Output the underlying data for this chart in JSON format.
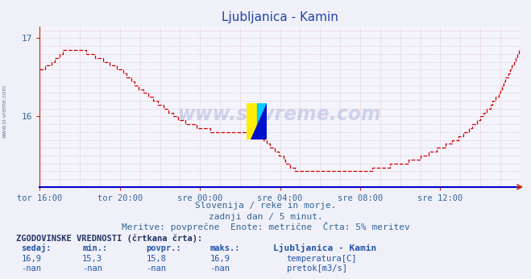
{
  "title": "Ljubljanica - Kamin",
  "title_color": "#2244aa",
  "bg_color": "#f0f0f8",
  "plot_bg_color": "#f4f4fc",
  "line_color": "#cc0000",
  "grid_color": "#ddaaaa",
  "axis_color": "#cc2200",
  "xaxis_line_color": "#0000cc",
  "ymin": 15.1,
  "ymax": 17.15,
  "yticks": [
    16,
    17
  ],
  "xlabels": [
    "tor 16:00",
    "tor 20:00",
    "sre 00:00",
    "sre 04:00",
    "sre 08:00",
    "sre 12:00"
  ],
  "footer1": "Slovenija / reke in morje.",
  "footer2": "zadnji dan / 5 minut.",
  "footer3": "Meritve: povprečne  Enote: metrične  Črta: 5% meritev",
  "hist_label": "ZGODOVINSKE VREDNOSTI (črtkana črta):",
  "col_sedaj": "sedaj:",
  "col_min": "min.:",
  "col_povpr": "povpr.:",
  "col_maks": "maks.:",
  "station": "Ljubljanica - Kamin",
  "val_sedaj": "16,9",
  "val_min": "15,3",
  "val_povpr": "15,8",
  "val_maks": "16,9",
  "label_temp": "temperatura[C]",
  "label_pretok": "pretok[m3/s]",
  "val2_sedaj": "-nan",
  "val2_min": "-nan",
  "val2_povpr": "-nan",
  "val2_maks": "-nan",
  "watermark": "www.si-vreme.com",
  "watermark_color": "#2244aa",
  "text_color": "#336699",
  "sidebar_text": "www.si-vreme.com",
  "keypoints_x": [
    0,
    5,
    15,
    25,
    35,
    48,
    60,
    72,
    84,
    96,
    108,
    120,
    132,
    144,
    150,
    156,
    160,
    175,
    192,
    205,
    215,
    225,
    235,
    245,
    255,
    265,
    275,
    285,
    288
  ],
  "keypoints_y": [
    16.6,
    16.65,
    16.85,
    16.85,
    16.75,
    16.6,
    16.35,
    16.15,
    15.95,
    15.85,
    15.8,
    15.8,
    15.75,
    15.5,
    15.35,
    15.3,
    15.3,
    15.3,
    15.3,
    15.35,
    15.4,
    15.45,
    15.55,
    15.65,
    15.8,
    16.0,
    16.3,
    16.75,
    16.9
  ],
  "step_size": 0.05
}
